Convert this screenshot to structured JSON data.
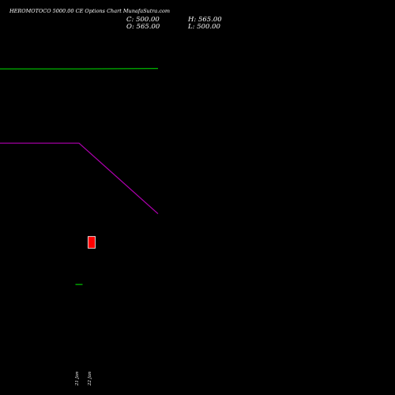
{
  "header": {
    "title": "HEROMOTOCO 5000.00 CE Options Chart MunafaSutra.com",
    "close": "C: 500.00",
    "high": "H: 565.00",
    "open": "O: 565.00",
    "low": "L: 500.00"
  },
  "colors": {
    "background": "#000000",
    "green_line": "#00cc00",
    "magenta_line": "#b000b0",
    "bear_candle": "#ff0000",
    "bear_candle_border": "#ffffff",
    "bull_tick": "#00cc00"
  },
  "chart_data": {
    "type": "candlestick",
    "title": "HEROMOTOCO 5000.00 CE Options Chart MunafaSutra.com",
    "x": [
      "21 Jan",
      "22 Jan"
    ],
    "candles": [
      {
        "date": "21 Jan",
        "open": 300,
        "high": 300,
        "low": 300,
        "close": 300
      },
      {
        "date": "22 Jan",
        "open": 565,
        "high": 565,
        "low": 500,
        "close": 500
      }
    ],
    "overlays": [
      {
        "color": "green",
        "points": [
          [
            0,
            1490
          ],
          [
            0.5,
            1490
          ],
          [
            1,
            1492
          ]
        ]
      },
      {
        "color": "magenta",
        "points": [
          [
            0,
            1080
          ],
          [
            0.5,
            1080
          ],
          [
            1,
            690
          ]
        ]
      }
    ],
    "ylim": [
      -310,
      1870
    ],
    "grid": false,
    "legend": "none"
  }
}
